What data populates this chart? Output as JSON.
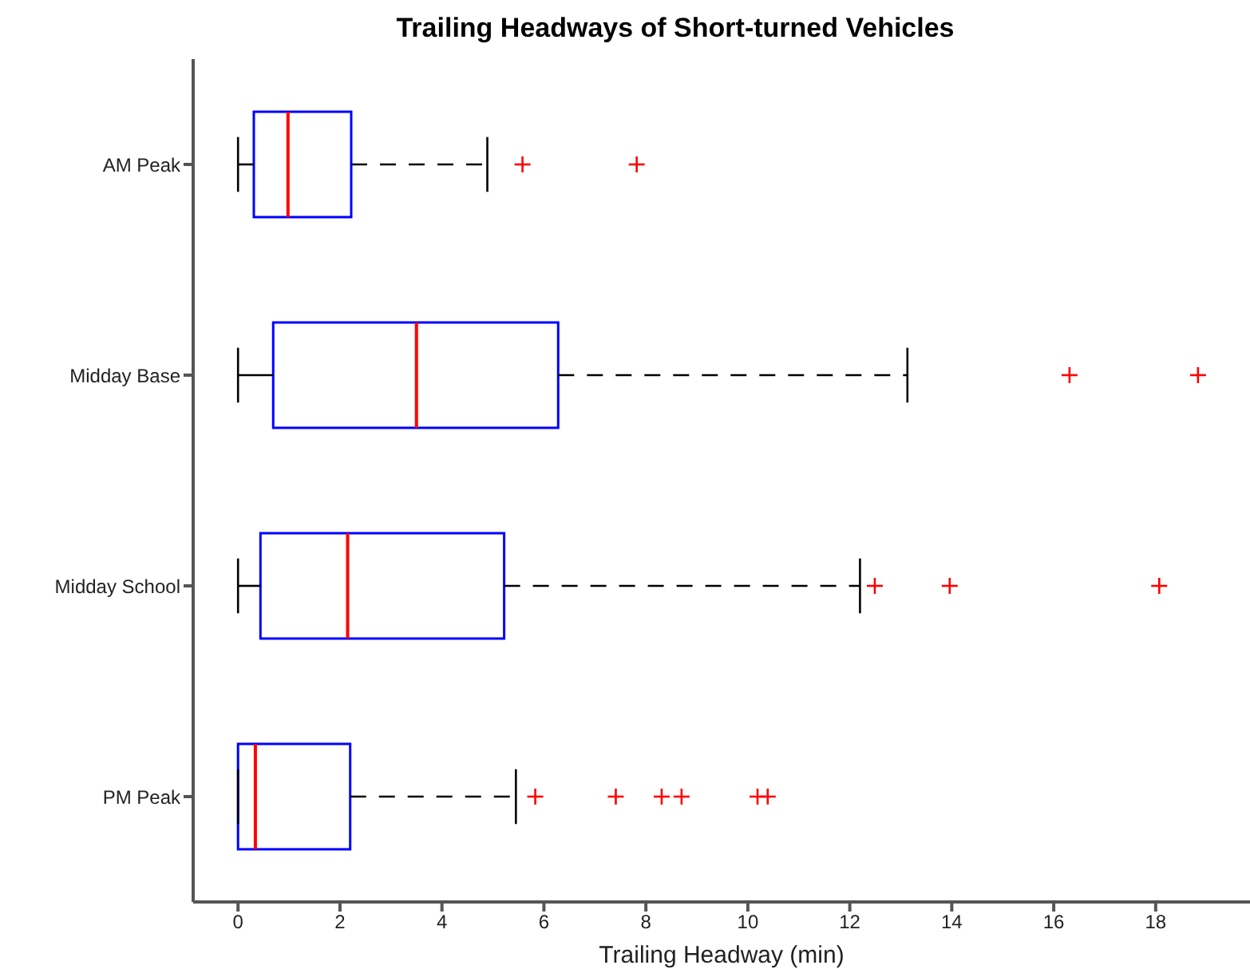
{
  "chart_data": {
    "type": "box",
    "title": "Trailing Headways of Short-turned Vehicles",
    "xlabel": "Trailing Headway (min)",
    "orientation": "horizontal",
    "categories": [
      "AM Peak",
      "Midday Base",
      "Midday School",
      "PM Peak"
    ],
    "boxes": [
      {
        "low": 0,
        "q1": 0.31,
        "median": 0.98,
        "q3": 2.22,
        "high": 4.89,
        "outliers": [
          5.58,
          7.82
        ]
      },
      {
        "low": 0,
        "q1": 0.69,
        "median": 3.5,
        "q3": 6.28,
        "high": 13.13,
        "outliers": [
          16.31,
          18.83
        ]
      },
      {
        "low": 0,
        "q1": 0.44,
        "median": 2.15,
        "q3": 5.22,
        "high": 12.2,
        "outliers": [
          12.49,
          13.96,
          18.07
        ]
      },
      {
        "low": 0,
        "q1": 0,
        "median": 0.34,
        "q3": 2.2,
        "high": 5.45,
        "outliers": [
          5.83,
          7.41,
          8.31,
          8.7,
          10.19,
          10.39
        ]
      }
    ],
    "color": "#0000ff",
    "xlim": [
      -0.88,
      19.85
    ],
    "xticks": [
      0,
      2,
      4,
      6,
      8,
      10,
      12,
      14,
      16,
      18
    ]
  }
}
